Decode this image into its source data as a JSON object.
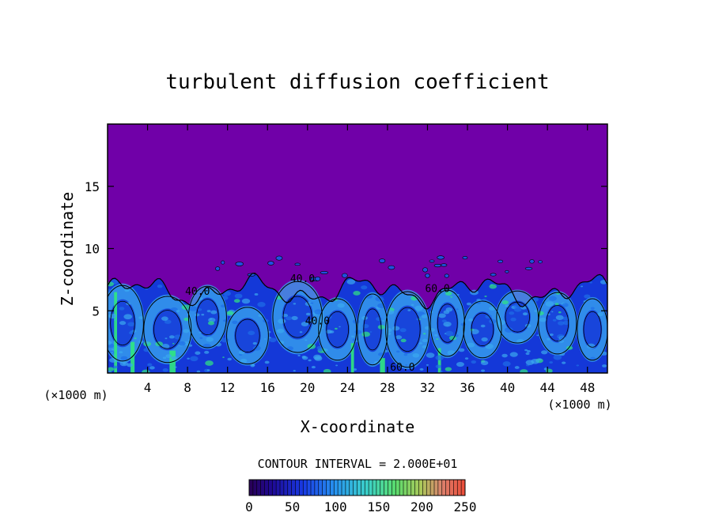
{
  "chart_data": {
    "type": "heatmap",
    "title": "turbulent diffusion coefficient",
    "xlabel": "X-coordinate",
    "ylabel": "Z-coordinate",
    "x_unit": "(×1000 m)",
    "x_ticks": [
      4,
      8,
      12,
      16,
      20,
      24,
      28,
      32,
      36,
      40,
      44,
      48
    ],
    "y_ticks": [
      5,
      10,
      15
    ],
    "xlim": [
      0,
      50
    ],
    "ylim": [
      0,
      20
    ],
    "contour_interval_text": "CONTOUR INTERVAL =  2.000E+01",
    "contour_labels": [
      "40.0",
      "40.0",
      "40.0",
      "60.0",
      "60.0"
    ],
    "colorbar": {
      "ticks": [
        0,
        50,
        100,
        150,
        200,
        250
      ],
      "range": [
        0,
        250
      ]
    },
    "background_value": 0,
    "colors": {
      "background_field": "#7000a8",
      "low": "#1438d8",
      "mid": "#3aa8f0",
      "high": "#30e880"
    }
  }
}
